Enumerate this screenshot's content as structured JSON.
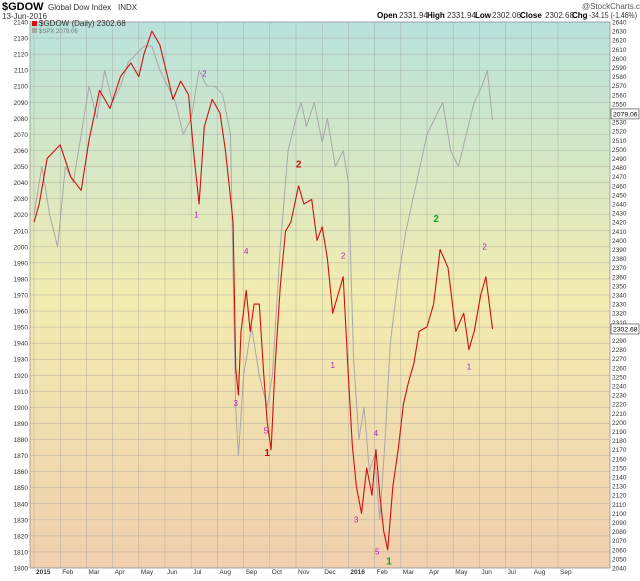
{
  "header": {
    "symbol": "$GDOW",
    "name": "Global Dow Index",
    "exchange": "INDX",
    "brand": "@StockCharts.com",
    "date": "13-Jun-2016",
    "open_label": "Open",
    "open": "2331.94",
    "high_label": "High",
    "high": "2331.94",
    "low_label": "Low",
    "low": "2302.06",
    "close_label": "Close",
    "close": "2302.68",
    "chg_label": "Chg",
    "chg": "-34.15 (-1.46%)",
    "legend_gdow": "$GDOW (Daily) 2302.68",
    "legend_spx": "$SPX 2079.06"
  },
  "colors": {
    "gdow": "#d01010",
    "spx": "#a8a8a8",
    "bg_top": "#b9e2dc",
    "bg_mid": "#f2ecb0",
    "bg_bottom": "#f0cfae",
    "wave_purple": "#b020c0",
    "wave_red": "#d01010",
    "wave_green": "#20a020"
  },
  "chart_data": {
    "type": "line",
    "left_axis": {
      "min": 1800,
      "max": 2140,
      "step": 10
    },
    "right_axis": {
      "min": 2040,
      "max": 2640,
      "step": 10
    },
    "x_ticks": [
      "2015",
      "Feb",
      "Mar",
      "Apr",
      "May",
      "Jun",
      "Jul",
      "Aug",
      "Sep",
      "Oct",
      "Nov",
      "Dec",
      "2016",
      "Feb",
      "Mar",
      "Apr",
      "May",
      "Jun",
      "Jul",
      "Aug",
      "Sep"
    ],
    "last_labels": {
      "spx": "2079.06",
      "gdow": "2302.68"
    },
    "series": [
      {
        "name": "$GDOW",
        "axis": "right",
        "values": [
          [
            0,
            2420
          ],
          [
            0.2,
            2440
          ],
          [
            0.5,
            2490
          ],
          [
            1,
            2505
          ],
          [
            1.4,
            2470
          ],
          [
            1.8,
            2455
          ],
          [
            2.1,
            2510
          ],
          [
            2.5,
            2565
          ],
          [
            2.9,
            2545
          ],
          [
            3.3,
            2580
          ],
          [
            3.7,
            2595
          ],
          [
            4,
            2580
          ],
          [
            4.2,
            2605
          ],
          [
            4.5,
            2630
          ],
          [
            4.8,
            2615
          ],
          [
            5.1,
            2580
          ],
          [
            5.3,
            2555
          ],
          [
            5.6,
            2575
          ],
          [
            5.9,
            2560
          ],
          [
            6.1,
            2495
          ],
          [
            6.3,
            2440
          ],
          [
            6.5,
            2525
          ],
          [
            6.8,
            2555
          ],
          [
            7.1,
            2540
          ],
          [
            7.3,
            2500
          ],
          [
            7.6,
            2420
          ],
          [
            7.7,
            2260
          ],
          [
            7.8,
            2230
          ],
          [
            7.9,
            2300
          ],
          [
            8.1,
            2345
          ],
          [
            8.25,
            2300
          ],
          [
            8.4,
            2330
          ],
          [
            8.6,
            2330
          ],
          [
            8.75,
            2260
          ],
          [
            8.9,
            2200
          ],
          [
            9.05,
            2170
          ],
          [
            9.2,
            2260
          ],
          [
            9.4,
            2350
          ],
          [
            9.6,
            2410
          ],
          [
            9.8,
            2420
          ],
          [
            10.1,
            2460
          ],
          [
            10.3,
            2440
          ],
          [
            10.6,
            2445
          ],
          [
            10.8,
            2400
          ],
          [
            11,
            2415
          ],
          [
            11.2,
            2380
          ],
          [
            11.4,
            2320
          ],
          [
            11.6,
            2340
          ],
          [
            11.8,
            2360
          ],
          [
            11.9,
            2305
          ],
          [
            12,
            2250
          ],
          [
            12.15,
            2175
          ],
          [
            12.3,
            2130
          ],
          [
            12.5,
            2100
          ],
          [
            12.7,
            2150
          ],
          [
            12.9,
            2120
          ],
          [
            13.05,
            2170
          ],
          [
            13.2,
            2120
          ],
          [
            13.35,
            2080
          ],
          [
            13.5,
            2060
          ],
          [
            13.7,
            2130
          ],
          [
            13.9,
            2170
          ],
          [
            14.1,
            2220
          ],
          [
            14.3,
            2245
          ],
          [
            14.5,
            2265
          ],
          [
            14.7,
            2300
          ],
          [
            15,
            2305
          ],
          [
            15.25,
            2330
          ],
          [
            15.5,
            2390
          ],
          [
            15.8,
            2370
          ],
          [
            16.1,
            2300
          ],
          [
            16.4,
            2320
          ],
          [
            16.6,
            2280
          ],
          [
            16.8,
            2300
          ],
          [
            17.05,
            2340
          ],
          [
            17.25,
            2360
          ],
          [
            17.5,
            2302.68
          ]
        ]
      },
      {
        "name": "$SPX",
        "axis": "left",
        "values": [
          [
            0,
            2020
          ],
          [
            0.3,
            2050
          ],
          [
            0.6,
            2020
          ],
          [
            0.9,
            2000
          ],
          [
            1.2,
            2050
          ],
          [
            1.5,
            2040
          ],
          [
            1.8,
            2070
          ],
          [
            2.1,
            2100
          ],
          [
            2.4,
            2080
          ],
          [
            2.7,
            2110
          ],
          [
            3,
            2090
          ],
          [
            3.3,
            2100
          ],
          [
            3.6,
            2115
          ],
          [
            3.9,
            2120
          ],
          [
            4.2,
            2125
          ],
          [
            4.5,
            2125
          ],
          [
            4.8,
            2110
          ],
          [
            5.1,
            2100
          ],
          [
            5.4,
            2090
          ],
          [
            5.7,
            2070
          ],
          [
            6,
            2080
          ],
          [
            6.3,
            2110
          ],
          [
            6.6,
            2100
          ],
          [
            6.9,
            2100
          ],
          [
            7.2,
            2095
          ],
          [
            7.5,
            2070
          ],
          [
            7.7,
            1900
          ],
          [
            7.8,
            1870
          ],
          [
            8,
            1920
          ],
          [
            8.3,
            1950
          ],
          [
            8.6,
            1920
          ],
          [
            8.9,
            1900
          ],
          [
            9.1,
            1920
          ],
          [
            9.4,
            2000
          ],
          [
            9.7,
            2060
          ],
          [
            10,
            2080
          ],
          [
            10.2,
            2090
          ],
          [
            10.4,
            2075
          ],
          [
            10.7,
            2090
          ],
          [
            11,
            2065
          ],
          [
            11.2,
            2080
          ],
          [
            11.5,
            2050
          ],
          [
            11.8,
            2060
          ],
          [
            12,
            2040
          ],
          [
            12.2,
            1930
          ],
          [
            12.4,
            1880
          ],
          [
            12.6,
            1900
          ],
          [
            12.8,
            1860
          ],
          [
            13,
            1870
          ],
          [
            13.2,
            1830
          ],
          [
            13.4,
            1880
          ],
          [
            13.6,
            1940
          ],
          [
            13.9,
            1980
          ],
          [
            14.2,
            2010
          ],
          [
            14.6,
            2040
          ],
          [
            15,
            2070
          ],
          [
            15.3,
            2080
          ],
          [
            15.6,
            2090
          ],
          [
            15.9,
            2060
          ],
          [
            16.2,
            2050
          ],
          [
            16.5,
            2070
          ],
          [
            16.8,
            2090
          ],
          [
            17.1,
            2100
          ],
          [
            17.3,
            2110
          ],
          [
            17.5,
            2079.06
          ]
        ]
      }
    ],
    "annotations": [
      {
        "text": "1",
        "color": "purple",
        "x": 6.2,
        "y": 2425
      },
      {
        "text": "2",
        "color": "purple",
        "x": 6.5,
        "y": 2580
      },
      {
        "text": "3",
        "color": "purple",
        "x": 7.7,
        "y": 2218
      },
      {
        "text": "4",
        "color": "purple",
        "x": 8.1,
        "y": 2385
      },
      {
        "text": "5",
        "color": "purple",
        "x": 8.85,
        "y": 2188
      },
      {
        "text": "1",
        "color": "red",
        "x": 8.9,
        "y": 2163
      },
      {
        "text": "2",
        "color": "red",
        "x": 10.1,
        "y": 2480
      },
      {
        "text": "1",
        "color": "purple",
        "x": 11.4,
        "y": 2260
      },
      {
        "text": "2",
        "color": "purple",
        "x": 11.8,
        "y": 2380
      },
      {
        "text": "3",
        "color": "purple",
        "x": 12.3,
        "y": 2090
      },
      {
        "text": "4",
        "color": "purple",
        "x": 13.05,
        "y": 2185
      },
      {
        "text": "5",
        "color": "purple",
        "x": 13.1,
        "y": 2055
      },
      {
        "text": "1",
        "color": "green",
        "x": 13.55,
        "y": 2044
      },
      {
        "text": "2",
        "color": "green",
        "x": 15.35,
        "y": 2420
      },
      {
        "text": "1",
        "color": "purple",
        "x": 16.6,
        "y": 2258
      },
      {
        "text": "2",
        "color": "purple",
        "x": 17.2,
        "y": 2390
      }
    ]
  }
}
